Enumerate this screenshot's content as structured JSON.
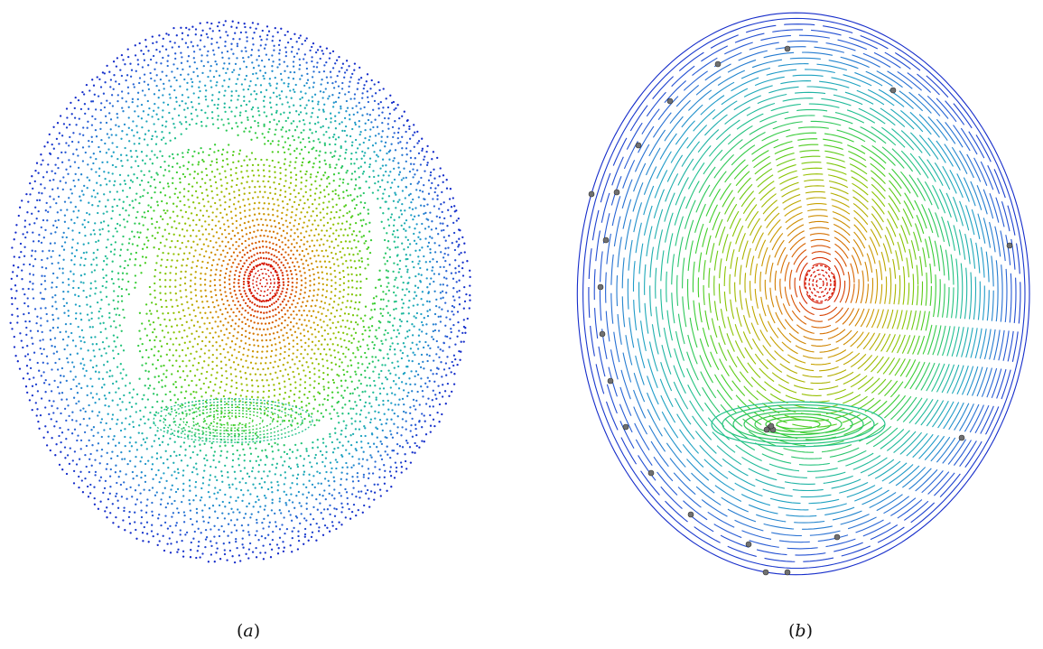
{
  "figure": {
    "panels": [
      {
        "id": "a",
        "caption": "a",
        "style": "dots"
      },
      {
        "id": "b",
        "caption": "b",
        "style": "lines",
        "marker_color": "#707070"
      }
    ],
    "colormap": [
      "#d40000",
      "#d86a00",
      "#c8a200",
      "#8fc400",
      "#3ccf2a",
      "#20c090",
      "#1f9fc8",
      "#2a63d6",
      "#1020c8"
    ]
  }
}
